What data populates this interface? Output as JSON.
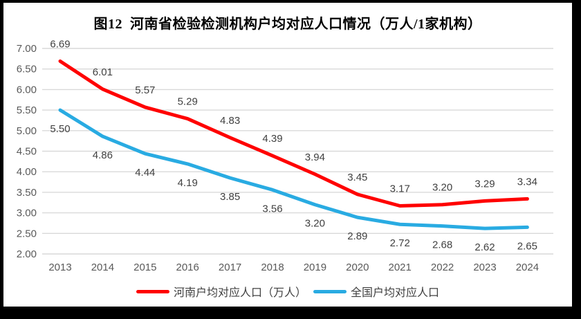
{
  "frame": {
    "border_color": "#000000",
    "page_background": "#ffffff"
  },
  "chart_data": {
    "type": "line",
    "title": "图12  河南省检验检测机构户均对应人口情况（万人/1家机构）",
    "categories": [
      "2013",
      "2014",
      "2015",
      "2016",
      "2017",
      "2018",
      "2019",
      "2020",
      "2021",
      "2022",
      "2023",
      "2024"
    ],
    "series": [
      {
        "name": "河南户均对应人口（万人）",
        "color": "#ff0000",
        "values": [
          6.69,
          6.01,
          5.57,
          5.29,
          4.83,
          4.39,
          3.94,
          3.45,
          3.17,
          3.2,
          3.29,
          3.34
        ],
        "label_position": "above"
      },
      {
        "name": "全国户均对应人口",
        "color": "#29abe2",
        "values": [
          5.5,
          4.86,
          4.44,
          4.19,
          3.85,
          3.56,
          3.2,
          2.89,
          2.72,
          2.68,
          2.62,
          2.65
        ],
        "label_position": "below"
      }
    ],
    "xlabel": "",
    "ylabel": "",
    "ylim": [
      2.0,
      7.0
    ],
    "ytick_step": 0.5,
    "ytick_labels": [
      "7.00",
      "6.50",
      "6.00",
      "5.50",
      "5.00",
      "4.50",
      "4.00",
      "3.50",
      "3.00",
      "2.50",
      "2.00"
    ],
    "value_decimals": 2,
    "grid": true,
    "gridline_color": "#d9d9d9",
    "axis_text_color": "#595959",
    "data_label_color": "#404040",
    "legend_position": "bottom"
  }
}
